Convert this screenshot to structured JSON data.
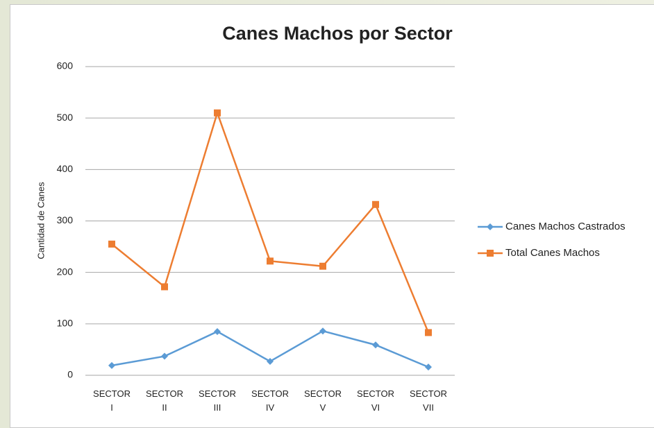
{
  "chart_data": {
    "type": "line",
    "title": "Canes Machos por Sector",
    "y_label": "Cantidad de Canes",
    "categories": [
      "SECTOR I",
      "SECTOR II",
      "SECTOR III",
      "SECTOR IV",
      "SECTOR V",
      "SECTOR VI",
      "SECTOR VII"
    ],
    "series": [
      {
        "name": "Canes Machos Castrados",
        "color": "#5b9bd5",
        "marker": "diamond",
        "values": [
          19,
          37,
          85,
          27,
          86,
          59,
          16
        ]
      },
      {
        "name": "Total Canes Machos",
        "color": "#ed7d31",
        "marker": "square",
        "values": [
          255,
          172,
          510,
          222,
          212,
          332,
          83
        ]
      }
    ],
    "ylim": [
      0,
      600
    ],
    "yticks": [
      0,
      100,
      200,
      300,
      400,
      500,
      600
    ],
    "grid": true,
    "legend": "right"
  }
}
